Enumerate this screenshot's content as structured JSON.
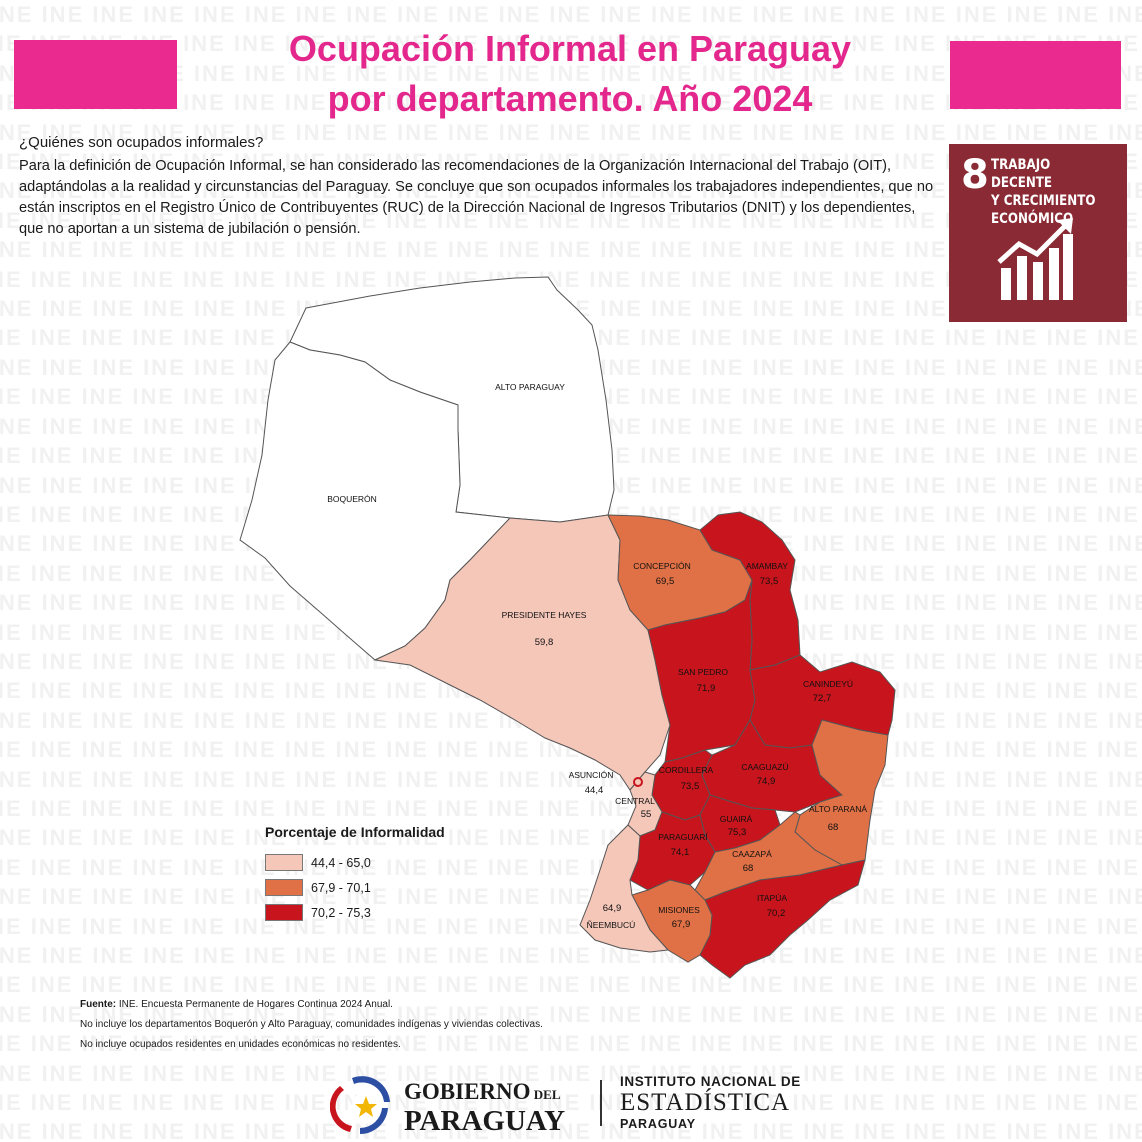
{
  "header": {
    "title_line1": "Ocupación Informal en Paraguay",
    "title_line2": "por departamento. Año 2024"
  },
  "intro": {
    "question": "¿Quiénes son ocupados informales?",
    "description": "Para la definición de Ocupación Informal, se han considerado las recomendaciones de la Organización Internacional del Trabajo (OIT), adaptándolas a la realidad y circunstancias del Paraguay. Se concluye que son ocupados informales los trabajadores independientes, que no están inscriptos en el Registro Único de Contribuyentes (RUC) de la Dirección Nacional de Ingresos Tributarios (DNIT) y los dependientes, que no aportan a un sistema de jubilación o pensión."
  },
  "sdg": {
    "number": "8",
    "label_line1": "TRABAJO DECENTE",
    "label_line2": "Y CRECIMIENTO",
    "label_line3": "ECONÓMICO",
    "color": "#8a2a34",
    "icon": "growth-chart-icon"
  },
  "watermark_text": "INE",
  "map": {
    "colors": {
      "low": "#f4c7b9",
      "mid": "#e07146",
      "high": "#c8141c",
      "none": "#ffffff"
    },
    "departments": [
      {
        "name": "ALTO PARAGUAY",
        "value": "",
        "class": "none"
      },
      {
        "name": "BOQUERÓN",
        "value": "",
        "class": "none"
      },
      {
        "name": "PRESIDENTE HAYES",
        "value": "59,8",
        "class": "low"
      },
      {
        "name": "CONCEPCIÓN",
        "value": "69,5",
        "class": "mid"
      },
      {
        "name": "AMAMBAY",
        "value": "73,5",
        "class": "high"
      },
      {
        "name": "SAN PEDRO",
        "value": "71,9",
        "class": "high"
      },
      {
        "name": "CANINDEYÚ",
        "value": "72,7",
        "class": "high"
      },
      {
        "name": "CORDILLERA",
        "value": "73,5",
        "class": "high"
      },
      {
        "name": "CAAGUAZÚ",
        "value": "74,9",
        "class": "high"
      },
      {
        "name": "ALTO PARANÁ",
        "value": "68",
        "class": "mid"
      },
      {
        "name": "ASUNCIÓN",
        "value": "44,4",
        "class": "low"
      },
      {
        "name": "CENTRAL",
        "value": "55",
        "class": "low"
      },
      {
        "name": "GUAIRÁ",
        "value": "75,3",
        "class": "high"
      },
      {
        "name": "PARAGUARÍ",
        "value": "74,1",
        "class": "high"
      },
      {
        "name": "CAAZAPÁ",
        "value": "68",
        "class": "mid"
      },
      {
        "name": "ITAPÚA",
        "value": "70,2",
        "class": "high"
      },
      {
        "name": "MISIONES",
        "value": "67,9",
        "class": "mid"
      },
      {
        "name": "ÑEEMBUCÚ",
        "value": "64,9",
        "class": "low"
      }
    ]
  },
  "legend": {
    "title": "Porcentaje de Informalidad",
    "items": [
      {
        "label": "44,4 - 65,0",
        "color": "#f4c7b9"
      },
      {
        "label": "67,9 - 70,1",
        "color": "#e07146"
      },
      {
        "label": "70,2 - 75,3",
        "color": "#c8141c"
      }
    ]
  },
  "notes": {
    "source_label": "Fuente:",
    "source_text": " INE. Encuesta Permanente de Hogares Continua 2024 Anual.",
    "note1": "No incluye los departamentos Boquerón y Alto Paraguay, comunidades indígenas y viviendas colectivas.",
    "note2": "No incluye ocupados residentes en unidades económicas no residentes."
  },
  "footer": {
    "gov_line1_a": "GOBIERNO",
    "gov_line1_b": " DEL",
    "gov_line2": "PARAGUAY",
    "ine_line1": "INSTITUTO NACIONAL DE",
    "ine_line2": "ESTADÍSTICA",
    "ine_line3": "PARAGUAY"
  }
}
